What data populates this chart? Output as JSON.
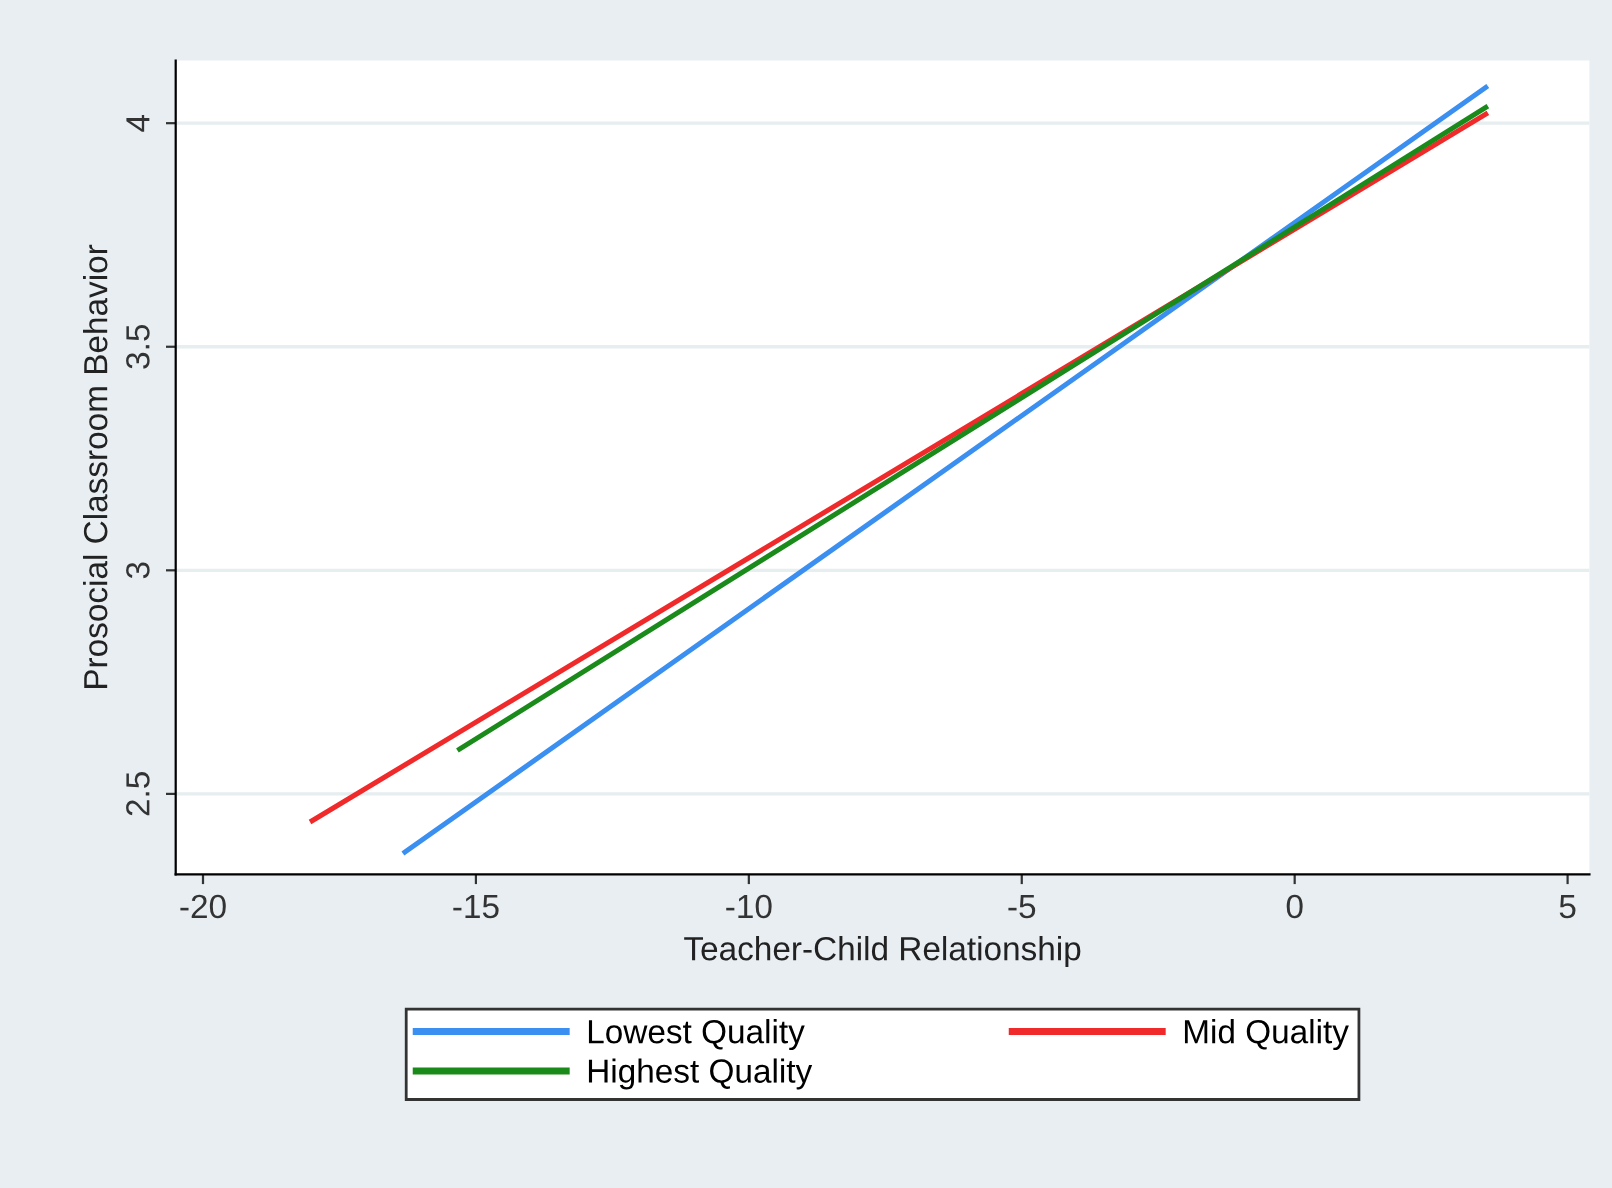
{
  "chart_data": {
    "type": "line",
    "xlabel": "Teacher-Child Relationship",
    "ylabel": "Prosocial Classroom Behavior",
    "series": [
      {
        "name": "Lowest Quality",
        "color": "#3a8ff0",
        "x": [
          -16.3,
          3.5
        ],
        "values": [
          2.37,
          4.08
        ]
      },
      {
        "name": "Mid Quality",
        "color": "#f02a2a",
        "x": [
          -18.0,
          3.5
        ],
        "values": [
          2.44,
          4.02
        ]
      },
      {
        "name": "Highest Quality",
        "color": "#1a8a1a",
        "x": [
          -15.3,
          3.5
        ],
        "values": [
          2.6,
          4.035
        ]
      }
    ],
    "xlim": [
      -20.5,
      5.4
    ],
    "ylim": [
      2.32,
      4.14
    ],
    "xticks": [
      -20,
      -15,
      -10,
      -5,
      0,
      5
    ],
    "yticks": [
      2.5,
      3,
      3.5,
      4
    ],
    "grid": "y",
    "legend": "bottom",
    "marker": "none",
    "line_style": "solid"
  }
}
